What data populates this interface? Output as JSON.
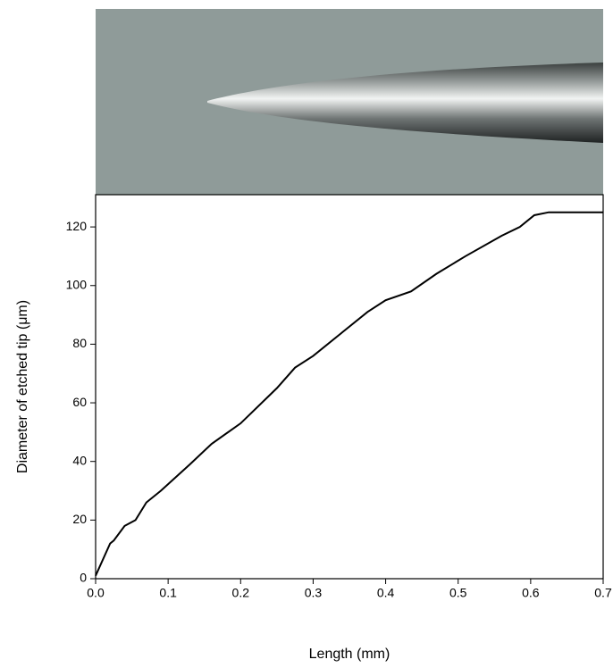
{
  "chart_data": {
    "type": "line",
    "x_label": "Length (mm)",
    "y_label": "Diameter of etched tip (μm)",
    "x": [
      0,
      0.02,
      0.025,
      0.04,
      0.055,
      0.07,
      0.09,
      0.13,
      0.16,
      0.2,
      0.25,
      0.275,
      0.3,
      0.34,
      0.375,
      0.4,
      0.435,
      0.47,
      0.51,
      0.56,
      0.585,
      0.605,
      0.625,
      0.7
    ],
    "series": [
      {
        "color": "#000000",
        "values": [
          1,
          12,
          13,
          18,
          20,
          26,
          30,
          39,
          46,
          53,
          65,
          72,
          76,
          84,
          91,
          95,
          98,
          104,
          110,
          117,
          120,
          124,
          125,
          125
        ]
      }
    ],
    "xlim": [
      0,
      0.7
    ],
    "xticks": [
      {
        "value": 0,
        "label": "0.0"
      },
      0.1,
      0.2,
      0.3,
      0.4,
      0.5,
      0.6,
      0.7
    ],
    "ylim": [
      0,
      131
    ],
    "yticks": [
      0,
      20,
      40,
      60,
      80,
      100,
      120
    ]
  }
}
